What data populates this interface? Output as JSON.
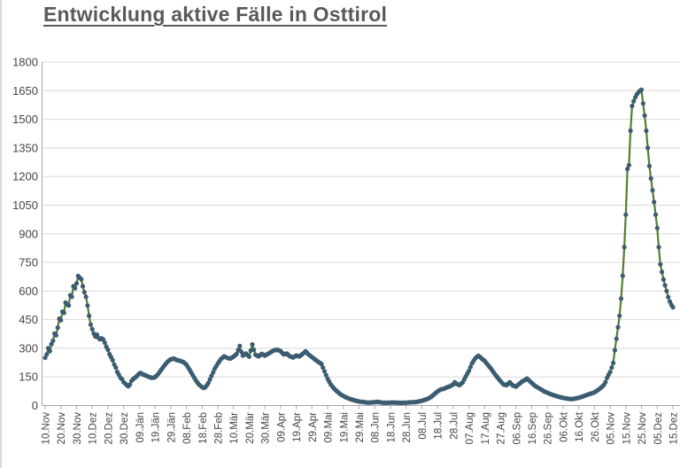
{
  "title": "Entwicklung aktive Fälle in Osttirol",
  "chart_data": {
    "type": "line",
    "title": "Entwicklung aktive Fälle in Osttirol",
    "xlabel": "",
    "ylabel": "",
    "legend": "none",
    "grid": "horizontal",
    "colors": {
      "line": "#567d2e",
      "marker": "#3b5c71",
      "gridline": "#d9d9d9",
      "axis": "#a6a6a6",
      "tick_text": "#444444",
      "title_text": "#595959"
    },
    "x_axis": {
      "tick_interval_days": 10,
      "tick_labels": [
        "10.Nov",
        "20.Nov",
        "30.Nov",
        "10.Dez",
        "20.Dez",
        "30.Dez",
        "09.Jän",
        "19.Jän",
        "29.Jän",
        "08.Feb",
        "18.Feb",
        "28.Feb",
        "10.Mär",
        "20.Mär",
        "30.Mär",
        "09.Apr",
        "19.Apr",
        "29.Apr",
        "09.Mai",
        "19.Mai",
        "29.Mai",
        "08.Jun",
        "18.Jun",
        "28.Jun",
        "08.Jul",
        "18.Jul",
        "28.Jul",
        "07.Aug",
        "17.Aug",
        "27.Aug",
        "06.Sep",
        "16.Sep",
        "26.Sep",
        "06.Okt",
        "16.Okt",
        "26.Okt",
        "05.Nov",
        "15.Nov",
        "25.Nov",
        "05.Dez",
        "15.Dez"
      ]
    },
    "y_axis": {
      "min": 0,
      "max": 1800,
      "tick_step": 150,
      "tick_labels": [
        "0",
        "150",
        "300",
        "450",
        "600",
        "750",
        "900",
        "1050",
        "1200",
        "1350",
        "1500",
        "1650",
        "1800"
      ]
    },
    "series": [
      {
        "name": "Aktive Fälle",
        "points": [
          [
            0,
            250
          ],
          [
            1,
            268
          ],
          [
            2,
            300
          ],
          [
            3,
            285
          ],
          [
            4,
            322
          ],
          [
            5,
            340
          ],
          [
            6,
            377
          ],
          [
            7,
            368
          ],
          [
            8,
            408
          ],
          [
            9,
            455
          ],
          [
            10,
            447
          ],
          [
            11,
            492
          ],
          [
            12,
            486
          ],
          [
            13,
            540
          ],
          [
            14,
            530
          ],
          [
            15,
            524
          ],
          [
            16,
            578
          ],
          [
            17,
            570
          ],
          [
            18,
            625
          ],
          [
            19,
            615
          ],
          [
            20,
            640
          ],
          [
            21,
            679
          ],
          [
            22,
            670
          ],
          [
            23,
            662
          ],
          [
            24,
            625
          ],
          [
            25,
            594
          ],
          [
            26,
            570
          ],
          [
            27,
            524
          ],
          [
            28,
            470
          ],
          [
            29,
            424
          ],
          [
            30,
            400
          ],
          [
            31,
            377
          ],
          [
            32,
            362
          ],
          [
            33,
            371
          ],
          [
            34,
            354
          ],
          [
            35,
            347
          ],
          [
            36,
            352
          ],
          [
            37,
            346
          ],
          [
            38,
            329
          ],
          [
            39,
            308
          ],
          [
            40,
            292
          ],
          [
            41,
            269
          ],
          [
            42,
            254
          ],
          [
            43,
            238
          ],
          [
            44,
            215
          ],
          [
            45,
            199
          ],
          [
            46,
            176
          ],
          [
            47,
            161
          ],
          [
            48,
            145
          ],
          [
            49,
            138
          ],
          [
            50,
            122
          ],
          [
            51,
            115
          ],
          [
            52,
            107
          ],
          [
            53,
            101
          ],
          [
            54,
            110
          ],
          [
            55,
            129
          ],
          [
            56,
            138
          ],
          [
            58,
            151
          ],
          [
            60,
            168
          ],
          [
            61,
            171
          ],
          [
            62,
            164
          ],
          [
            64,
            158
          ],
          [
            66,
            150
          ],
          [
            68,
            145
          ],
          [
            70,
            148
          ],
          [
            72,
            165
          ],
          [
            74,
            188
          ],
          [
            76,
            210
          ],
          [
            78,
            230
          ],
          [
            80,
            242
          ],
          [
            82,
            246
          ],
          [
            84,
            238
          ],
          [
            86,
            234
          ],
          [
            88,
            228
          ],
          [
            90,
            214
          ],
          [
            92,
            188
          ],
          [
            94,
            160
          ],
          [
            96,
            132
          ],
          [
            98,
            110
          ],
          [
            100,
            96
          ],
          [
            101,
            92
          ],
          [
            102,
            95
          ],
          [
            104,
            118
          ],
          [
            106,
            155
          ],
          [
            108,
            192
          ],
          [
            110,
            220
          ],
          [
            112,
            243
          ],
          [
            114,
            258
          ],
          [
            116,
            250
          ],
          [
            118,
            246
          ],
          [
            120,
            256
          ],
          [
            122,
            270
          ],
          [
            124,
            312
          ],
          [
            125,
            282
          ],
          [
            126,
            262
          ],
          [
            128,
            272
          ],
          [
            130,
            256
          ],
          [
            132,
            320
          ],
          [
            133,
            292
          ],
          [
            134,
            266
          ],
          [
            136,
            258
          ],
          [
            138,
            271
          ],
          [
            140,
            262
          ],
          [
            142,
            271
          ],
          [
            144,
            281
          ],
          [
            146,
            290
          ],
          [
            148,
            292
          ],
          [
            150,
            285
          ],
          [
            152,
            268
          ],
          [
            154,
            272
          ],
          [
            156,
            258
          ],
          [
            158,
            252
          ],
          [
            160,
            262
          ],
          [
            162,
            257
          ],
          [
            164,
            270
          ],
          [
            166,
            284
          ],
          [
            168,
            266
          ],
          [
            170,
            254
          ],
          [
            172,
            241
          ],
          [
            174,
            229
          ],
          [
            176,
            218
          ],
          [
            178,
            180
          ],
          [
            180,
            140
          ],
          [
            182,
            110
          ],
          [
            184,
            90
          ],
          [
            186,
            74
          ],
          [
            188,
            60
          ],
          [
            190,
            50
          ],
          [
            192,
            42
          ],
          [
            194,
            35
          ],
          [
            196,
            30
          ],
          [
            198,
            25
          ],
          [
            200,
            21
          ],
          [
            203,
            18
          ],
          [
            206,
            15
          ],
          [
            209,
            17
          ],
          [
            212,
            19
          ],
          [
            215,
            15
          ],
          [
            218,
            14
          ],
          [
            221,
            16
          ],
          [
            224,
            15
          ],
          [
            227,
            14
          ],
          [
            230,
            15
          ],
          [
            233,
            17
          ],
          [
            236,
            18
          ],
          [
            238,
            21
          ],
          [
            240,
            25
          ],
          [
            242,
            30
          ],
          [
            244,
            36
          ],
          [
            246,
            46
          ],
          [
            248,
            60
          ],
          [
            250,
            74
          ],
          [
            252,
            84
          ],
          [
            254,
            88
          ],
          [
            256,
            95
          ],
          [
            258,
            101
          ],
          [
            260,
            111
          ],
          [
            261,
            122
          ],
          [
            262,
            114
          ],
          [
            264,
            107
          ],
          [
            266,
            121
          ],
          [
            268,
            152
          ],
          [
            270,
            182
          ],
          [
            272,
            221
          ],
          [
            274,
            247
          ],
          [
            275,
            254
          ],
          [
            276,
            261
          ],
          [
            277,
            255
          ],
          [
            278,
            247
          ],
          [
            280,
            234
          ],
          [
            282,
            214
          ],
          [
            284,
            194
          ],
          [
            286,
            171
          ],
          [
            288,
            149
          ],
          [
            290,
            129
          ],
          [
            292,
            111
          ],
          [
            294,
            107
          ],
          [
            296,
            122
          ],
          [
            298,
            105
          ],
          [
            300,
            99
          ],
          [
            302,
            113
          ],
          [
            304,
            126
          ],
          [
            306,
            135
          ],
          [
            307,
            141
          ],
          [
            308,
            134
          ],
          [
            310,
            119
          ],
          [
            312,
            104
          ],
          [
            314,
            94
          ],
          [
            316,
            84
          ],
          [
            318,
            74
          ],
          [
            320,
            67
          ],
          [
            322,
            60
          ],
          [
            324,
            54
          ],
          [
            326,
            49
          ],
          [
            328,
            44
          ],
          [
            330,
            40
          ],
          [
            332,
            37
          ],
          [
            334,
            35
          ],
          [
            336,
            34
          ],
          [
            338,
            37
          ],
          [
            340,
            41
          ],
          [
            342,
            46
          ],
          [
            344,
            52
          ],
          [
            346,
            58
          ],
          [
            348,
            63
          ],
          [
            350,
            69
          ],
          [
            352,
            80
          ],
          [
            354,
            92
          ],
          [
            355,
            100
          ],
          [
            356,
            108
          ],
          [
            357,
            122
          ],
          [
            358,
            145
          ],
          [
            359,
            161
          ],
          [
            360,
            176
          ],
          [
            361,
            199
          ],
          [
            362,
            223
          ],
          [
            363,
            290
          ],
          [
            364,
            350
          ],
          [
            365,
            410
          ],
          [
            366,
            470
          ],
          [
            367,
            560
          ],
          [
            368,
            680
          ],
          [
            369,
            830
          ],
          [
            370,
            1000
          ],
          [
            371,
            1240
          ],
          [
            372,
            1260
          ],
          [
            373,
            1440
          ],
          [
            374,
            1570
          ],
          [
            375,
            1595
          ],
          [
            376,
            1615
          ],
          [
            377,
            1630
          ],
          [
            378,
            1641
          ],
          [
            379,
            1650
          ],
          [
            380,
            1655
          ],
          [
            381,
            1583
          ],
          [
            382,
            1520
          ],
          [
            383,
            1440
          ],
          [
            384,
            1350
          ],
          [
            385,
            1255
          ],
          [
            386,
            1190
          ],
          [
            387,
            1128
          ],
          [
            388,
            1066
          ],
          [
            389,
            1000
          ],
          [
            390,
            930
          ],
          [
            391,
            830
          ],
          [
            392,
            740
          ],
          [
            393,
            700
          ],
          [
            394,
            660
          ],
          [
            395,
            630
          ],
          [
            396,
            600
          ],
          [
            397,
            568
          ],
          [
            398,
            545
          ],
          [
            399,
            528
          ],
          [
            400,
            515
          ]
        ]
      }
    ]
  }
}
